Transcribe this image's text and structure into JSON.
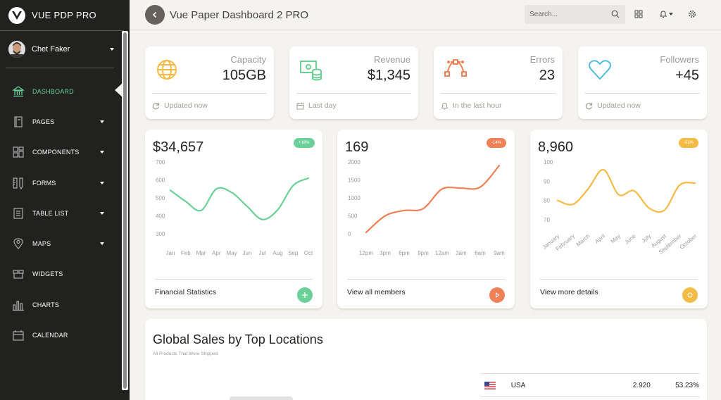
{
  "app": {
    "title": "VUE PDP PRO"
  },
  "user": {
    "name": "Chet Faker"
  },
  "sidebar": {
    "items": [
      {
        "label": "DASHBOARD",
        "icon": "bank-icon",
        "active": true,
        "has_caret": false
      },
      {
        "label": "PAGES",
        "icon": "book-icon",
        "active": false,
        "has_caret": true
      },
      {
        "label": "COMPONENTS",
        "icon": "layout-icon",
        "active": false,
        "has_caret": true
      },
      {
        "label": "FORMS",
        "icon": "ruler-pencil-icon",
        "active": false,
        "has_caret": true
      },
      {
        "label": "TABLE LIST",
        "icon": "list-icon",
        "active": false,
        "has_caret": true
      },
      {
        "label": "MAPS",
        "icon": "pin-icon",
        "active": false,
        "has_caret": true
      },
      {
        "label": "WIDGETS",
        "icon": "box-icon",
        "active": false,
        "has_caret": false
      },
      {
        "label": "CHARTS",
        "icon": "bar-chart-icon",
        "active": false,
        "has_caret": false
      },
      {
        "label": "CALENDAR",
        "icon": "calendar-icon",
        "active": false,
        "has_caret": false
      }
    ]
  },
  "topbar": {
    "title": "Vue Paper Dashboard 2 PRO",
    "search_placeholder": "Search..."
  },
  "stats": [
    {
      "label": "Capacity",
      "value": "105GB",
      "footer": "Updated now",
      "icon": "globe-icon",
      "footer_icon": "refresh-icon",
      "color": "#f3bb45"
    },
    {
      "label": "Revenue",
      "value": "$1,345",
      "footer": "Last day",
      "icon": "money-coins-icon",
      "footer_icon": "calendar-icon",
      "color": "#6bd098"
    },
    {
      "label": "Errors",
      "value": "23",
      "footer": "In the last hour",
      "icon": "vector-icon",
      "footer_icon": "bell-icon",
      "color": "#ef8157"
    },
    {
      "label": "Followers",
      "value": "+45",
      "footer": "Updated now",
      "icon": "heart-icon",
      "footer_icon": "refresh-icon",
      "color": "#51bcda"
    }
  ],
  "chart_cards": [
    {
      "value": "$34,657",
      "badge": "+18%",
      "footer": "Financial Statistics",
      "color": "#6bd098",
      "button_icon": "plus-icon"
    },
    {
      "value": "169",
      "badge": "-14%",
      "footer": "View all members",
      "color": "#ef8157",
      "button_icon": "play-icon"
    },
    {
      "value": "8,960",
      "badge": "-51%",
      "footer": "View more details",
      "color": "#f3bb45",
      "button_icon": "circle-icon"
    }
  ],
  "chart_data": [
    {
      "type": "line",
      "categories": [
        "Jan",
        "Feb",
        "Mar",
        "Apr",
        "May",
        "Jun",
        "Jul",
        "Aug",
        "Sep",
        "Oct"
      ],
      "values": [
        542,
        480,
        430,
        550,
        530,
        453,
        380,
        434,
        568,
        610
      ],
      "yticks": [
        "700",
        "600",
        "500",
        "400",
        "300"
      ],
      "ylim": [
        300,
        700
      ],
      "color": "#6bd098"
    },
    {
      "type": "line",
      "categories": [
        "12pm",
        "3pm",
        "6pm",
        "9pm",
        "12am",
        "3am",
        "6am",
        "9am"
      ],
      "values": [
        40,
        500,
        650,
        700,
        1250,
        1270,
        1300,
        1900
      ],
      "yticks": [
        "2000",
        "1500",
        "1000",
        "500",
        "0"
      ],
      "ylim": [
        0,
        2000
      ],
      "color": "#ef8157"
    },
    {
      "type": "line",
      "categories": [
        "January",
        "February",
        "March",
        "April",
        "May",
        "June",
        "July",
        "August",
        "September",
        "October"
      ],
      "values": [
        80,
        78,
        86,
        96,
        83,
        85,
        76,
        75,
        88,
        89
      ],
      "yticks": [
        "100",
        "90",
        "80",
        "70"
      ],
      "ylim": [
        70,
        100
      ],
      "color": "#f3bb45"
    }
  ],
  "sales": {
    "title": "Global Sales by Top Locations",
    "subtitle": "All Products That Were Shipped",
    "rows": [
      {
        "country": "USA",
        "count": "2.920",
        "percent": "53.23%"
      }
    ]
  },
  "colors": {
    "sidebar_bg": "#212120",
    "active": "#6bd098",
    "background": "#f4f3ef"
  }
}
